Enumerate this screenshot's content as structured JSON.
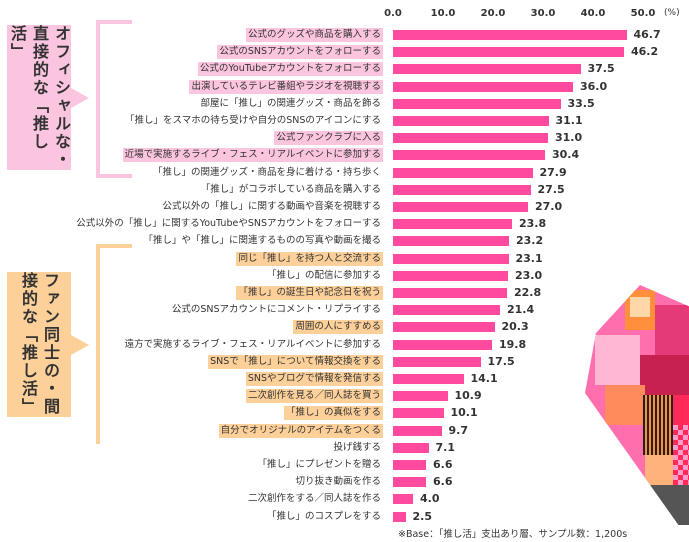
{
  "chart_data": {
    "type": "bar",
    "orientation": "horizontal",
    "unit": "(%)",
    "xlim": [
      0,
      50
    ],
    "ticks": [
      "0.0",
      "10.0",
      "20.0",
      "30.0",
      "40.0",
      "50.0"
    ],
    "categories": [
      "公式のグッズや商品を購入する",
      "公式のSNSアカウントをフォローする",
      "公式のYouTubeアカウントをフォローする",
      "出演しているテレビ番組やラジオを視聴する",
      "部屋に「推し」の関連グッズ・商品を飾る",
      "「推し」をスマホの待ち受けや自分のSNSのアイコンにする",
      "公式ファンクラブに入る",
      "近場で実施するライブ・フェス・リアルイベントに参加する",
      "「推し」の関連グッズ・商品を身に着ける・持ち歩く",
      "「推し」がコラボしている商品を購入する",
      "公式以外の「推し」に関する動画や音楽を視聴する",
      "公式以外の「推し」に関するYouTubeやSNSアカウントをフォローする",
      "「推し」や「推し」に関連するものの写真や動画を撮る",
      "同じ「推し」を持つ人と交流する",
      "「推し」の配信に参加する",
      "「推し」の誕生日や記念日を祝う",
      "公式のSNSアカウントにコメント・リプライする",
      "周囲の人にすすめる",
      "遠方で実施するライブ・フェス・リアルイベントに参加する",
      "SNSで「推し」について情報交換をする",
      "SNSやブログで情報を発信する",
      "二次創作を見る／同人誌を買う",
      "「推し」の真似をする",
      "自分でオリジナルのアイテムをつくる",
      "投げ銭する",
      "「推し」にプレゼントを贈る",
      "切り抜き動画を作る",
      "二次創作をする／同人誌を作る",
      "「推し」のコスプレをする"
    ],
    "values": [
      46.7,
      46.2,
      37.5,
      36.0,
      33.5,
      31.1,
      31.0,
      30.4,
      27.9,
      27.5,
      27.0,
      23.8,
      23.2,
      23.1,
      23.0,
      22.8,
      21.4,
      20.3,
      19.8,
      17.5,
      14.1,
      10.9,
      10.1,
      9.7,
      7.1,
      6.6,
      6.6,
      4.0,
      2.5
    ],
    "highlight": [
      "pink",
      "pink",
      "pink",
      "pink",
      "",
      "",
      "pink",
      "pink",
      "",
      "",
      "",
      "",
      "",
      "orange",
      "",
      "orange",
      "",
      "orange",
      "",
      "orange",
      "orange",
      "orange",
      "orange",
      "orange",
      "",
      "",
      "",
      "",
      ""
    ],
    "groups": [
      {
        "label": "オフィシャルな・直接的な「推し活」",
        "color": "#fbc4df"
      },
      {
        "label": "ファン同士の・間接的な「推し活」",
        "color": "#fdd09a"
      }
    ],
    "note": "※Base：「推し活」支出あり層、サンプル数：1,200s",
    "bar_color": "#ff4aa0"
  }
}
